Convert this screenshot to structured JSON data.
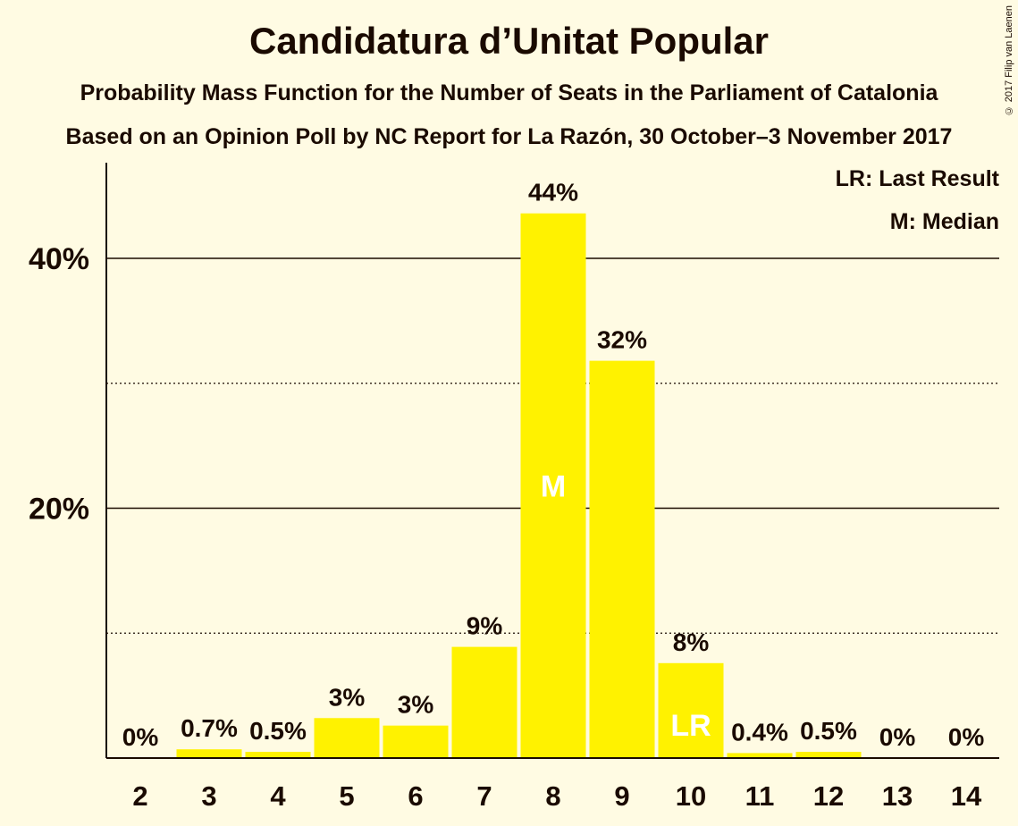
{
  "title": "Candidatura d’Unitat Popular",
  "subtitle1": "Probability Mass Function for the Number of Seats in the Parliament of Catalonia",
  "subtitle2": "Based on an Opinion Poll by NC Report for La Razón, 30 October–3 November 2017",
  "copyright": "© 2017 Filip van Laenen",
  "legend": {
    "last_result": "LR: Last Result",
    "median": "M: Median"
  },
  "colors": {
    "background": "#fffbe3",
    "bar": "#fff200",
    "text": "#1a0a00"
  },
  "chart_data": {
    "type": "bar",
    "title": "Candidatura d’Unitat Popular",
    "xlabel": "",
    "ylabel": "",
    "categories": [
      "2",
      "3",
      "4",
      "5",
      "6",
      "7",
      "8",
      "9",
      "10",
      "11",
      "12",
      "13",
      "14"
    ],
    "values": [
      0,
      0.7,
      0.5,
      3.2,
      2.6,
      8.9,
      43.6,
      31.8,
      7.6,
      0.4,
      0.5,
      0,
      0
    ],
    "value_labels": [
      "0%",
      "0.7%",
      "0.5%",
      "3%",
      "3%",
      "9%",
      "44%",
      "32%",
      "8%",
      "0.4%",
      "0.5%",
      "0%",
      "0%"
    ],
    "ylim": [
      0,
      47.5
    ],
    "y_ticks": [
      20,
      40
    ],
    "y_tick_labels": [
      "20%",
      "40%"
    ],
    "y_dotted_gridlines": [
      10,
      30
    ],
    "median_category": "8",
    "median_marker": "M",
    "last_result_category": "10",
    "last_result_marker": "LR"
  }
}
